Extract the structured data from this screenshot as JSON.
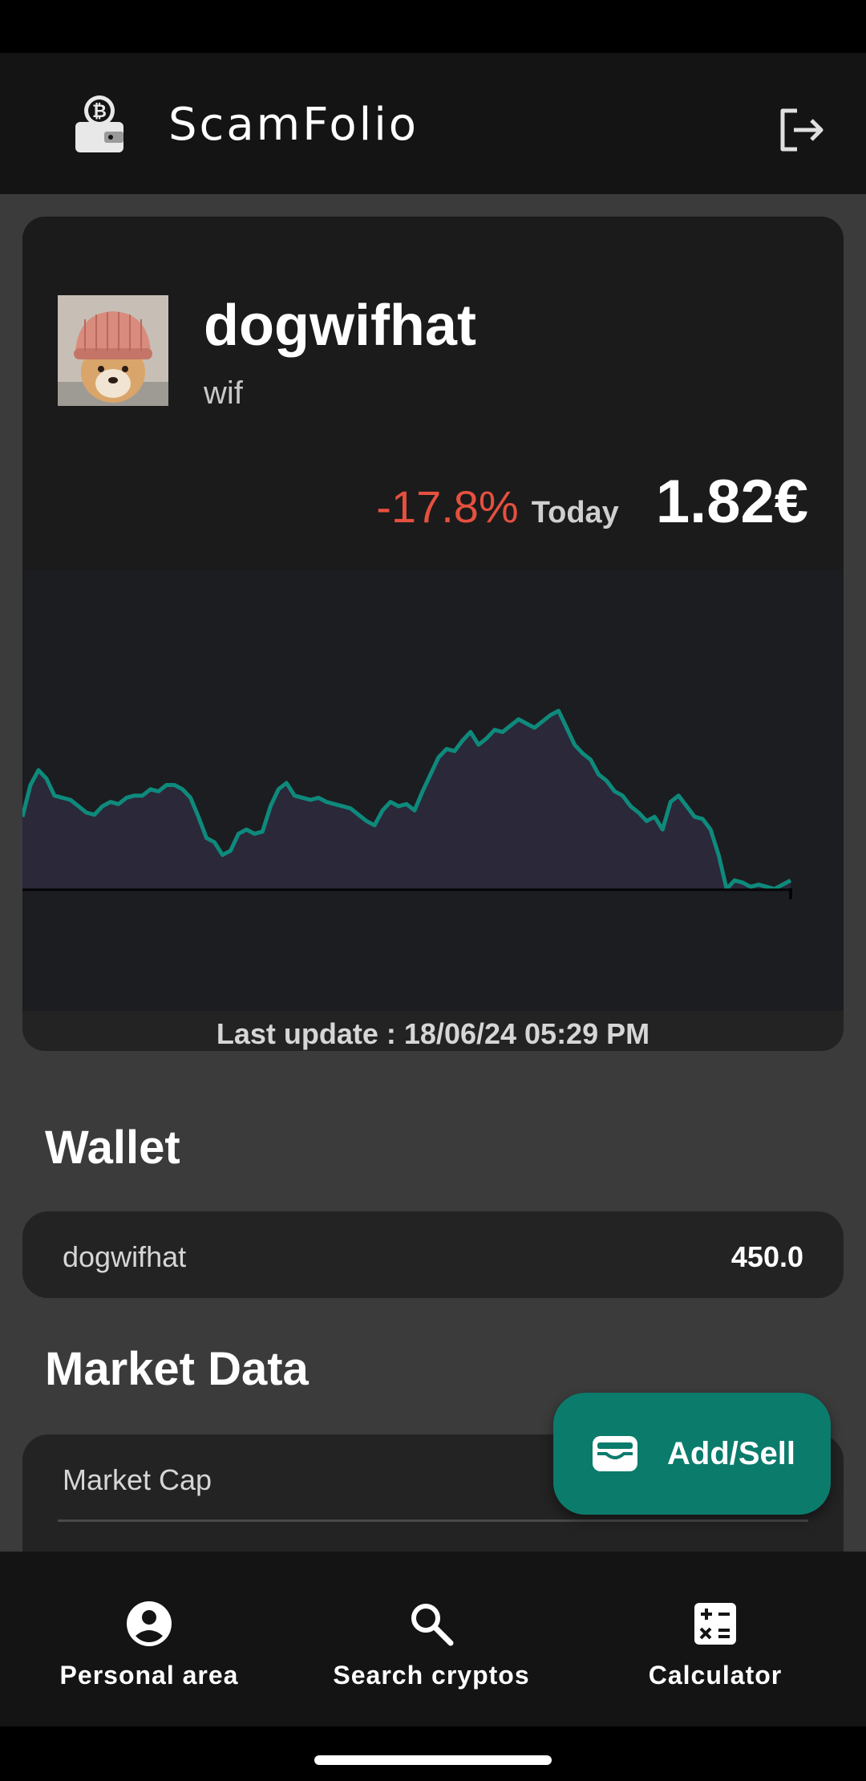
{
  "app": {
    "title": "ScamFolio",
    "logo_icon": "bitcoin-wallet-icon",
    "logout_icon": "logout-icon"
  },
  "coin": {
    "name": "dogwifhat",
    "symbol": "wif",
    "change": "-17.8%",
    "change_label": "Today",
    "price": "1.82€",
    "last_update": "Last update : 18/06/24 05:29 PM",
    "image_icon": "dog-with-hat-image"
  },
  "colors": {
    "accent": "#0b7b6c",
    "line": "#0e8a7c",
    "negative": "#e5503f",
    "fill": "#2e2a3c"
  },
  "chart_data": {
    "type": "area",
    "title": "",
    "xlabel": "",
    "ylabel": "",
    "grid": false,
    "series": [
      {
        "values": [
          1.9,
          2.05,
          2.12,
          2.08,
          2.0,
          1.99,
          1.98,
          1.95,
          1.92,
          1.91,
          1.95,
          1.97,
          1.96,
          1.99,
          2.0,
          2.0,
          2.03,
          2.02,
          2.05,
          2.05,
          2.03,
          1.99,
          1.9,
          1.8,
          1.78,
          1.72,
          1.74,
          1.82,
          1.84,
          1.82,
          1.83,
          1.95,
          2.03,
          2.06,
          2.0,
          1.99,
          1.98,
          1.99,
          1.97,
          1.96,
          1.95,
          1.94,
          1.91,
          1.88,
          1.86,
          1.93,
          1.97,
          1.95,
          1.96,
          1.93,
          2.02,
          2.1,
          2.18,
          2.22,
          2.21,
          2.26,
          2.3,
          2.24,
          2.27,
          2.31,
          2.3,
          2.33,
          2.36,
          2.34,
          2.32,
          2.35,
          2.38,
          2.4,
          2.32,
          2.24,
          2.2,
          2.17,
          2.1,
          2.07,
          2.02,
          2.0,
          1.95,
          1.92,
          1.88,
          1.9,
          1.84,
          1.97,
          2.0,
          1.95,
          1.9,
          1.89,
          1.84,
          1.72,
          1.56,
          1.6,
          1.59,
          1.57,
          1.58,
          1.57,
          1.56,
          1.58,
          1.6
        ]
      }
    ]
  },
  "wallet": {
    "title": "Wallet",
    "rows": [
      {
        "name": "dogwifhat",
        "amount": "450.0"
      }
    ]
  },
  "market": {
    "title": "Market Data",
    "rows": [
      {
        "label": "Market Cap"
      }
    ]
  },
  "fab": {
    "label": "Add/Sell",
    "icon": "wallet-icon"
  },
  "nav": {
    "items": [
      {
        "label": "Personal area",
        "icon": "account-circle-icon"
      },
      {
        "label": "Search cryptos",
        "icon": "search-icon"
      },
      {
        "label": "Calculator",
        "icon": "calculator-icon"
      }
    ]
  }
}
